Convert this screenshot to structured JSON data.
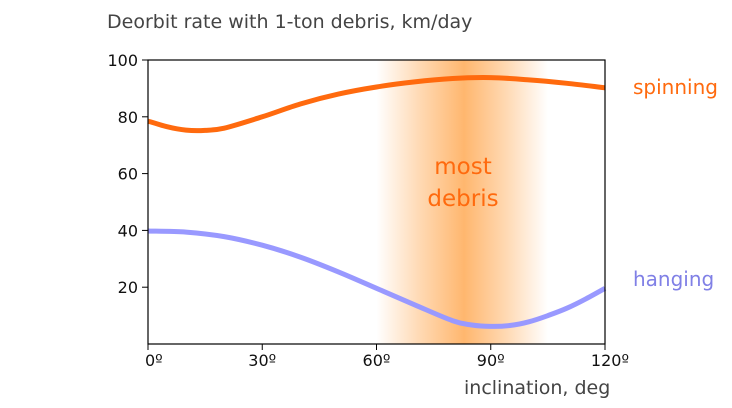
{
  "chart_data": {
    "type": "line",
    "title": "Deorbit rate with 1-ton debris, km/day",
    "xlabel": "inclination, deg",
    "ylabel": "",
    "xlim": [
      0,
      120
    ],
    "ylim": [
      0,
      100
    ],
    "x_ticks": [
      0,
      30,
      60,
      90,
      120
    ],
    "x_tick_labels": [
      "0º",
      "30º",
      "60º",
      "90º",
      "120º"
    ],
    "y_ticks": [
      20,
      40,
      60,
      80,
      100
    ],
    "y_tick_labels": [
      "20",
      "40",
      "60",
      "80",
      "100"
    ],
    "grid": false,
    "series": [
      {
        "name": "spinning",
        "color": "#ff6a0e",
        "x": [
          0,
          5,
          10,
          15,
          20,
          30,
          40,
          50,
          60,
          70,
          80,
          90,
          100,
          110,
          120
        ],
        "values": [
          78.5,
          76.5,
          75.3,
          75.2,
          76.0,
          80.0,
          84.5,
          88.0,
          90.5,
          92.3,
          93.5,
          93.8,
          93.0,
          91.8,
          90.2
        ]
      },
      {
        "name": "hanging",
        "color": "#9999ff",
        "x": [
          0,
          10,
          20,
          30,
          40,
          50,
          60,
          70,
          80,
          85,
          90,
          95,
          100,
          105,
          110,
          115,
          120
        ],
        "values": [
          39.8,
          39.4,
          37.8,
          34.8,
          30.6,
          25.4,
          19.6,
          13.8,
          8.2,
          6.7,
          6.2,
          6.5,
          7.8,
          10.0,
          12.6,
          15.9,
          19.6
        ]
      }
    ],
    "highlight_band": {
      "x_range": [
        60,
        105
      ],
      "peak_x": 83,
      "color": "#ffaa55",
      "label_lines": [
        "most",
        "debris"
      ]
    }
  }
}
